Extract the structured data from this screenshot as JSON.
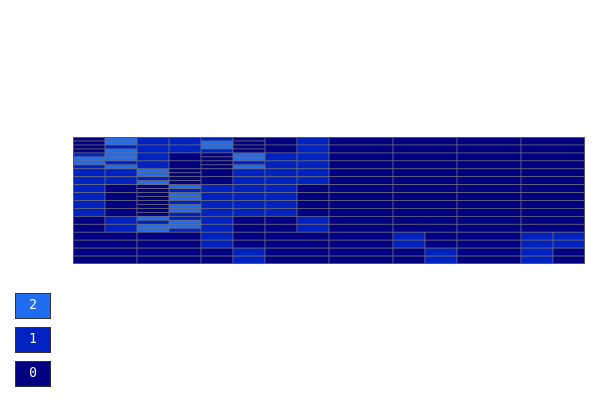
{
  "colors": {
    "level_0": "#000080",
    "level_1": "#0022c0",
    "level_2": "#1f6df0",
    "grid_line": "#6a6a7a",
    "frame": "#555566"
  },
  "legend": [
    {
      "label": "2",
      "color": "#1f6df0"
    },
    {
      "label": "1",
      "color": "#0022c0"
    },
    {
      "label": "0",
      "color": "#000080"
    }
  ],
  "grid": {
    "blocks": [
      [
        2,
        1,
        2,
        1,
        0,
        0,
        0,
        0
      ],
      [
        1,
        2,
        1,
        1,
        0,
        0,
        0,
        0
      ],
      [
        1,
        2,
        1,
        1,
        0,
        0,
        0,
        0
      ],
      [
        0,
        0,
        1,
        0,
        0,
        1,
        0,
        1
      ]
    ]
  }
}
